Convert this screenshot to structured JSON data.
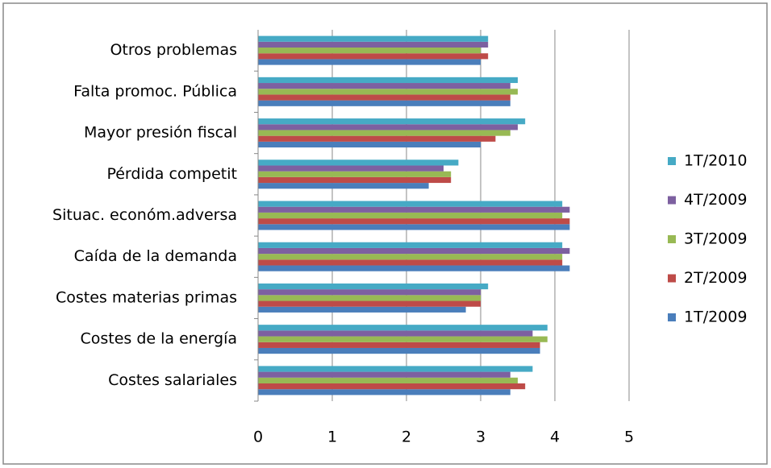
{
  "chart_data": {
    "type": "hbar",
    "categories": [
      "Costes salariales",
      "Costes de la energía",
      "Costes materias primas",
      "Caída de la demanda",
      "Situac. económ.adversa",
      "Pérdida competit",
      "Mayor presión fiscal",
      "Falta promoc. Pública",
      "Otros problemas"
    ],
    "series": [
      {
        "name": "1T/2009",
        "color": "#4a7ebb",
        "values": [
          3.4,
          3.8,
          2.8,
          4.2,
          4.2,
          2.3,
          3.0,
          3.4,
          3.0
        ]
      },
      {
        "name": "2T/2009",
        "color": "#be4b48",
        "values": [
          3.6,
          3.8,
          3.0,
          4.1,
          4.2,
          2.6,
          3.2,
          3.4,
          3.1
        ]
      },
      {
        "name": "3T/2009",
        "color": "#98b954",
        "values": [
          3.5,
          3.9,
          3.0,
          4.1,
          4.1,
          2.6,
          3.4,
          3.5,
          3.0
        ]
      },
      {
        "name": "4T/2009",
        "color": "#7d60a0",
        "values": [
          3.4,
          3.7,
          3.0,
          4.2,
          4.2,
          2.5,
          3.5,
          3.4,
          3.1
        ]
      },
      {
        "name": "1T/2010",
        "color": "#46aac5",
        "values": [
          3.7,
          3.9,
          3.1,
          4.1,
          4.1,
          2.7,
          3.6,
          3.5,
          3.1
        ]
      }
    ],
    "xlim": [
      0,
      5
    ],
    "xticks": [
      0,
      1,
      2,
      3,
      4,
      5
    ],
    "grid": true,
    "legend": "right"
  }
}
